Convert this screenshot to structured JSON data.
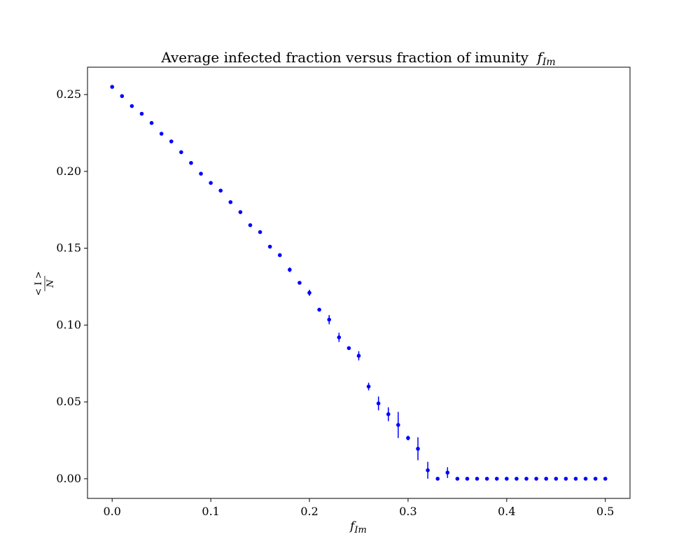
{
  "chart_data": {
    "type": "scatter",
    "title": "Average infected fraction versus fraction of imunity",
    "title_math": {
      "base": "f",
      "sub": "Im"
    },
    "xlabel": {
      "base": "f",
      "sub": "Im"
    },
    "ylabel": {
      "numerator": "< I >",
      "denominator": "N"
    },
    "xlim": [
      -0.025,
      0.525
    ],
    "ylim": [
      -0.0128,
      0.2678
    ],
    "xticks": [
      0.0,
      0.1,
      0.2,
      0.3,
      0.4,
      0.5
    ],
    "xtick_labels": [
      "0.0",
      "0.1",
      "0.2",
      "0.3",
      "0.4",
      "0.5"
    ],
    "yticks": [
      0.0,
      0.05,
      0.1,
      0.15,
      0.2,
      0.25
    ],
    "ytick_labels": [
      "0.00",
      "0.05",
      "0.10",
      "0.15",
      "0.20",
      "0.25"
    ],
    "grid": false,
    "marker_color": "#0000ff",
    "series": [
      {
        "x": [
          0.0,
          0.01,
          0.02,
          0.03,
          0.04,
          0.05,
          0.06,
          0.07,
          0.08,
          0.09,
          0.1,
          0.11,
          0.12,
          0.13,
          0.14,
          0.15,
          0.16,
          0.17,
          0.18,
          0.19,
          0.2,
          0.21,
          0.22,
          0.23,
          0.24,
          0.25,
          0.26,
          0.27,
          0.28,
          0.29,
          0.3,
          0.31,
          0.32,
          0.33,
          0.34,
          0.35,
          0.36,
          0.37,
          0.38,
          0.39,
          0.4,
          0.41,
          0.42,
          0.43,
          0.44,
          0.45,
          0.46,
          0.47,
          0.48,
          0.49,
          0.5
        ],
        "y": [
          0.255,
          0.249,
          0.2425,
          0.2375,
          0.2315,
          0.2245,
          0.2195,
          0.2125,
          0.2055,
          0.1985,
          0.1925,
          0.1875,
          0.18,
          0.1735,
          0.165,
          0.1605,
          0.151,
          0.1455,
          0.136,
          0.1275,
          0.121,
          0.11,
          0.1035,
          0.092,
          0.085,
          0.08,
          0.06,
          0.049,
          0.042,
          0.035,
          0.0265,
          0.0195,
          0.0055,
          0.0,
          0.004,
          0.0,
          0.0,
          0.0,
          0.0,
          0.0,
          0.0,
          0.0,
          0.0,
          0.0,
          0.0,
          0.0,
          0.0,
          0.0,
          0.0,
          0.0,
          0.0
        ],
        "yerr": [
          0,
          0,
          0,
          0,
          0,
          0,
          0,
          0,
          0,
          0,
          0,
          0,
          0,
          0,
          0,
          0,
          0,
          0,
          0.0015,
          0,
          0.002,
          0.001,
          0.003,
          0.003,
          0.0008,
          0.003,
          0.0025,
          0.0045,
          0.0045,
          0.0085,
          0.0015,
          0.0075,
          0.0055,
          0,
          0.0035,
          0,
          0,
          0,
          0,
          0,
          0,
          0,
          0,
          0,
          0,
          0,
          0,
          0,
          0,
          0,
          0
        ]
      }
    ]
  }
}
